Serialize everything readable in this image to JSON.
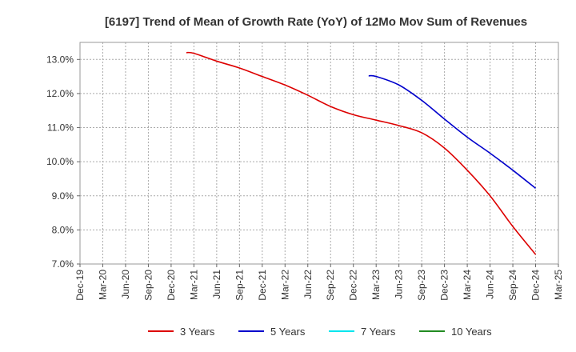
{
  "chart_data": {
    "type": "line",
    "title": "[6197]  Trend of Mean of Growth Rate (YoY) of 12Mo Mov Sum of Revenues",
    "xlabel": "",
    "ylabel": "",
    "ylim": [
      7.0,
      13.5
    ],
    "y_ticks": [
      7.0,
      8.0,
      9.0,
      10.0,
      11.0,
      12.0,
      13.0
    ],
    "y_tick_labels": [
      "7.0%",
      "8.0%",
      "9.0%",
      "10.0%",
      "11.0%",
      "12.0%",
      "13.0%"
    ],
    "x_tick_labels": [
      "Dec-19",
      "Mar-20",
      "Jun-20",
      "Sep-20",
      "Dec-20",
      "Mar-21",
      "Jun-21",
      "Sep-21",
      "Dec-21",
      "Mar-22",
      "Jun-22",
      "Sep-22",
      "Dec-22",
      "Mar-23",
      "Jun-23",
      "Sep-23",
      "Dec-23",
      "Mar-24",
      "Jun-24",
      "Sep-24",
      "Dec-24",
      "Mar-25"
    ],
    "grid": true,
    "legend_position": "bottom",
    "series": [
      {
        "name": "3 Years",
        "color": "#dd0000",
        "x_index": [
          4.67,
          5,
          6,
          7,
          8,
          9,
          10,
          11,
          12,
          13,
          14,
          15,
          16,
          17,
          18,
          19,
          20
        ],
        "values": [
          13.2,
          13.18,
          12.95,
          12.75,
          12.5,
          12.25,
          11.95,
          11.62,
          11.38,
          11.22,
          11.06,
          10.85,
          10.4,
          9.75,
          9.0,
          8.1,
          7.28
        ]
      },
      {
        "name": "5 Years",
        "color": "#0000cc",
        "x_index": [
          12.67,
          13,
          14,
          15,
          16,
          17,
          18,
          19,
          20
        ],
        "values": [
          12.52,
          12.5,
          12.25,
          11.8,
          11.25,
          10.72,
          10.25,
          9.75,
          9.22
        ]
      },
      {
        "name": "7 Years",
        "color": "#00e5ee",
        "x_index": [],
        "values": []
      },
      {
        "name": "10 Years",
        "color": "#228b22",
        "x_index": [],
        "values": []
      }
    ]
  }
}
